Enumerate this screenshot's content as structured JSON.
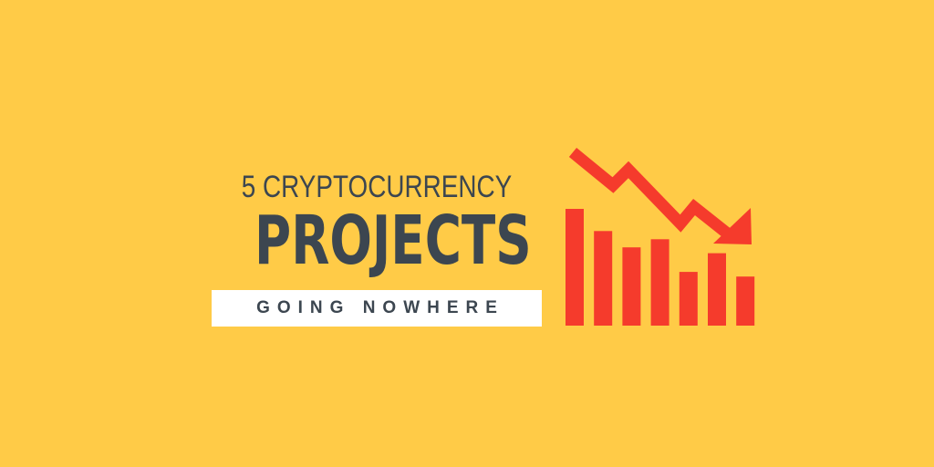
{
  "background_color": "#ffcb47",
  "text_color": "#3c4650",
  "accent_color": "#f53b2c",
  "ribbon_color": "#ffffff",
  "title": {
    "line1": "5 CRYPTOCURRENCY",
    "line2": "PROJECTS",
    "tagline": "GOING NOWHERE"
  },
  "graphic": {
    "icon": "declining-bar-chart-with-down-arrow-icon",
    "bar_levels": [
      1.0,
      0.81,
      0.67,
      0.74,
      0.46,
      0.62,
      0.42
    ]
  }
}
